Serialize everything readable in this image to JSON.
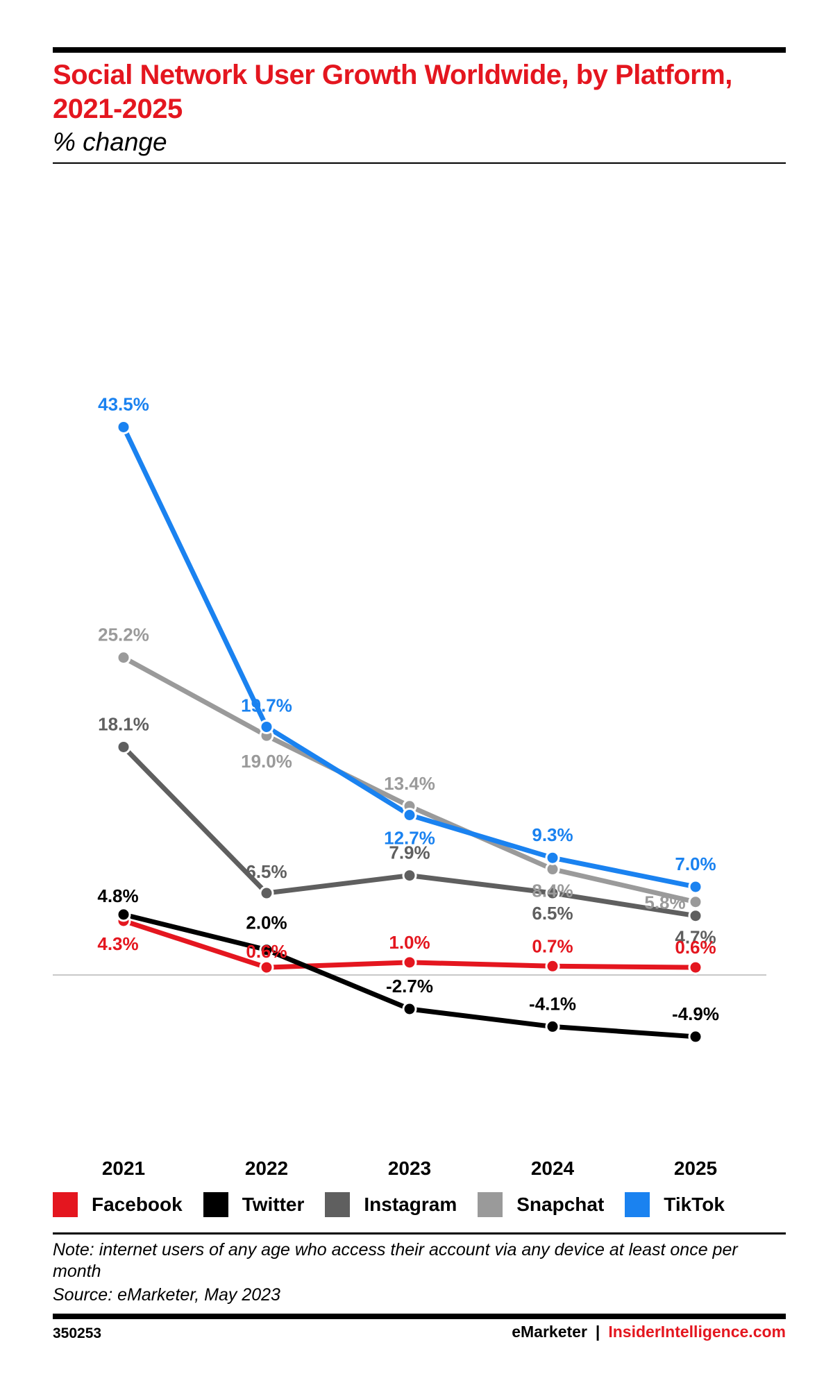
{
  "header": {
    "title": "Social Network User Growth Worldwide, by Platform, 2021-2025",
    "subtitle": "% change"
  },
  "colors": {
    "accent": "#e4161f",
    "facebook": "#e4161f",
    "twitter": "#000000",
    "instagram": "#5f5f5f",
    "snapchat": "#9a9a9a",
    "tiktok": "#1a82f0"
  },
  "chart_data": {
    "type": "line",
    "title": "Social Network User Growth Worldwide, by Platform, 2021-2025",
    "subtitle": "% change",
    "x": [
      "2021",
      "2022",
      "2023",
      "2024",
      "2025"
    ],
    "ylim": [
      -10,
      45
    ],
    "grid": false,
    "legend_position": "bottom",
    "series": [
      {
        "name": "Facebook",
        "color": "#e4161f",
        "values": [
          4.3,
          0.6,
          1.0,
          0.7,
          0.6
        ],
        "labels": [
          "4.3%",
          "0.6%",
          "1.0%",
          "0.7%",
          "0.6%"
        ]
      },
      {
        "name": "Twitter",
        "color": "#000000",
        "values": [
          4.8,
          2.0,
          -2.7,
          -4.1,
          -4.9
        ],
        "labels": [
          "4.8%",
          "2.0%",
          "-2.7%",
          "-4.1%",
          "-4.9%"
        ]
      },
      {
        "name": "Instagram",
        "color": "#5f5f5f",
        "values": [
          18.1,
          6.5,
          7.9,
          6.5,
          4.7
        ],
        "labels": [
          "18.1%",
          "6.5%",
          "7.9%",
          "6.5%",
          "4.7%"
        ]
      },
      {
        "name": "Snapchat",
        "color": "#9a9a9a",
        "values": [
          25.2,
          19.0,
          13.4,
          8.4,
          5.8
        ],
        "labels": [
          "25.2%",
          "19.0%",
          "13.4%",
          "8.4%",
          "5.8%"
        ]
      },
      {
        "name": "TikTok",
        "color": "#1a82f0",
        "values": [
          43.5,
          19.7,
          12.7,
          9.3,
          7.0
        ],
        "labels": [
          "43.5%",
          "19.7%",
          "12.7%",
          "9.3%",
          "7.0%"
        ]
      }
    ]
  },
  "legend": {
    "items": [
      {
        "label": "Facebook",
        "color": "#e4161f"
      },
      {
        "label": "Twitter",
        "color": "#000000"
      },
      {
        "label": "Instagram",
        "color": "#5f5f5f"
      },
      {
        "label": "Snapchat",
        "color": "#9a9a9a"
      },
      {
        "label": "TikTok",
        "color": "#1a82f0"
      }
    ]
  },
  "footer": {
    "note": "Note: internet users of any age who access their account via any device at least once per month",
    "source": "Source: eMarketer, May 2023",
    "code": "350253",
    "brand_left": "eMarketer",
    "brand_sep": "|",
    "brand_right": "InsiderIntelligence.com"
  }
}
